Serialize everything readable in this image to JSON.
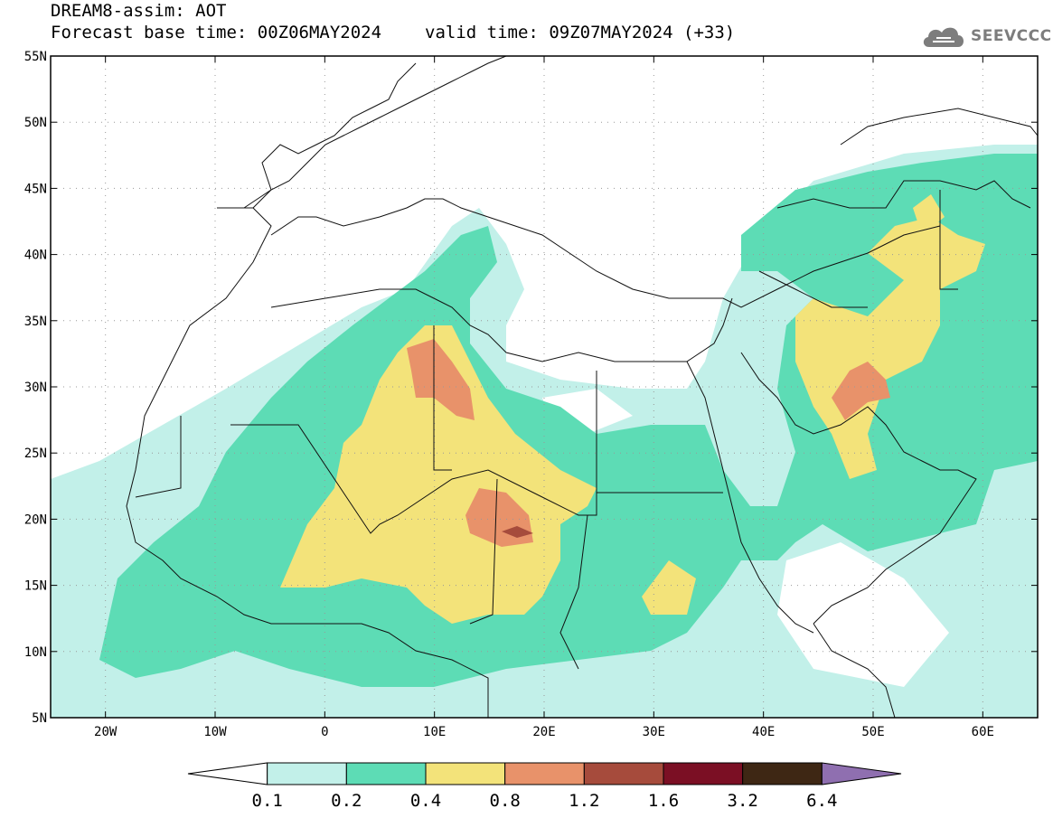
{
  "header": {
    "line1": "DREAM8-assim: AOT",
    "base_time": "Forecast base time: 00Z06MAY2024",
    "valid_time": "valid time: 09Z07MAY2024 (+33)"
  },
  "logo": {
    "text": "SEEVCCC",
    "icon": "cloud-icon"
  },
  "map": {
    "lat_labels": [
      "55N",
      "50N",
      "45N",
      "40N",
      "35N",
      "30N",
      "25N",
      "20N",
      "15N",
      "10N",
      "5N"
    ],
    "lon_labels": [
      "20W",
      "10W",
      "0",
      "10E",
      "20E",
      "30E",
      "40E",
      "50E",
      "60E"
    ],
    "extent": {
      "lon": [
        -25,
        65
      ],
      "lat": [
        5,
        55
      ]
    }
  },
  "legend": {
    "labels": [
      "0.1",
      "0.2",
      "0.4",
      "0.8",
      "1.2",
      "1.6",
      "3.2",
      "6.4"
    ],
    "colors": [
      "#ffffff",
      "#c2f0e9",
      "#5ddcb5",
      "#f3e37a",
      "#e8926a",
      "#a64b3c",
      "#7b0f24",
      "#3e2714",
      "#8f6fb0"
    ]
  }
}
